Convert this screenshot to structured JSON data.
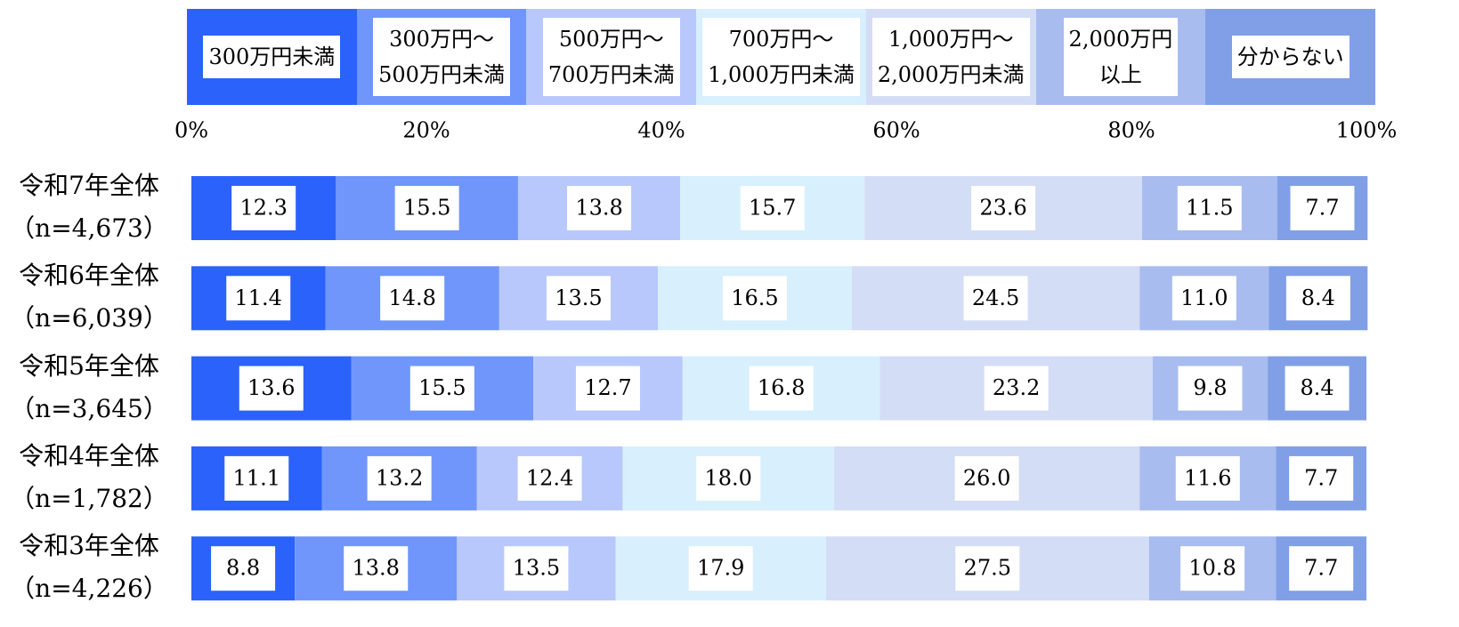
{
  "chart_data": {
    "type": "stacked-bar-horizontal",
    "categories": [
      "令和7年全体",
      "令和6年全体",
      "令和5年全体",
      "令和4年全体",
      "令和3年全体"
    ],
    "n_labels": [
      "（n=4,673）",
      "（n=6,039）",
      "（n=3,645）",
      "（n=1,782）",
      "（n=4,226）"
    ],
    "series": [
      {
        "name": "300万円未満",
        "color": "#2b62fb",
        "values": [
          12.3,
          11.4,
          13.6,
          11.1,
          8.8
        ],
        "value_labels": [
          "12.3",
          "11.4",
          "13.6",
          "11.1",
          "8.8"
        ]
      },
      {
        "name": "300万円～\n500万円未満",
        "color": "#7096fc",
        "values": [
          15.5,
          14.8,
          15.5,
          13.2,
          13.8
        ],
        "value_labels": [
          "15.5",
          "14.8",
          "15.5",
          "13.2",
          "13.8"
        ]
      },
      {
        "name": "500万円～\n700万円未満",
        "color": "#b8c8fc",
        "values": [
          13.8,
          13.5,
          12.7,
          12.4,
          13.5
        ],
        "value_labels": [
          "13.8",
          "13.5",
          "12.7",
          "12.4",
          "13.5"
        ]
      },
      {
        "name": "700万円～\n1,000万円未満",
        "color": "#d8effd",
        "values": [
          15.7,
          16.5,
          16.8,
          18.0,
          17.9
        ],
        "value_labels": [
          "15.7",
          "16.5",
          "16.8",
          "18.0",
          "17.9"
        ]
      },
      {
        "name": "1,000万円～\n2,000万円未満",
        "color": "#d4ddf6",
        "values": [
          23.6,
          24.5,
          23.2,
          26.0,
          27.5
        ],
        "value_labels": [
          "23.6",
          "24.5",
          "23.2",
          "26.0",
          "27.5"
        ]
      },
      {
        "name": "2,000万円\n以上",
        "color": "#a9bcef",
        "values": [
          11.5,
          11.0,
          9.8,
          11.6,
          10.8
        ],
        "value_labels": [
          "11.5",
          "11.0",
          "9.8",
          "11.6",
          "10.8"
        ]
      },
      {
        "name": "分からない",
        "color": "#809fe7",
        "values": [
          7.7,
          8.4,
          8.4,
          7.7,
          7.7
        ],
        "value_labels": [
          "7.7",
          "8.4",
          "8.4",
          "7.7",
          "7.7"
        ]
      }
    ],
    "xlim": [
      0,
      100
    ],
    "xticks": [
      {
        "value": 0,
        "label": "0%"
      },
      {
        "value": 20,
        "label": "20%"
      },
      {
        "value": 40,
        "label": "40%"
      },
      {
        "value": 60,
        "label": "60%"
      },
      {
        "value": 80,
        "label": "80%"
      },
      {
        "value": 100,
        "label": "100%"
      }
    ]
  }
}
